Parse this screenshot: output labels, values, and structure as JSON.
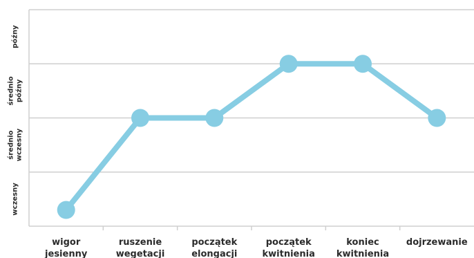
{
  "chart_data": {
    "type": "line",
    "categories": [
      [
        "wigor",
        "jesienny"
      ],
      [
        "ruszenie",
        "wegetacji"
      ],
      [
        "początek",
        "elongacji"
      ],
      [
        "początek",
        "kwitnienia"
      ],
      [
        "koniec",
        "kwitnienia"
      ],
      [
        "dojrzewanie"
      ]
    ],
    "y_levels": [
      [
        "wczesny"
      ],
      [
        "średnio",
        "wczesny"
      ],
      [
        "średnio",
        "późny"
      ],
      [
        "późny"
      ]
    ],
    "values": [
      0.3,
      2,
      2,
      3,
      3,
      2
    ],
    "ylim": [
      0,
      4
    ],
    "title": "",
    "xlabel": "",
    "ylabel": "",
    "grid": true,
    "colors": {
      "line": "#87cde3",
      "grid": "#cfcfcf",
      "text": "#2b2b2b"
    }
  }
}
